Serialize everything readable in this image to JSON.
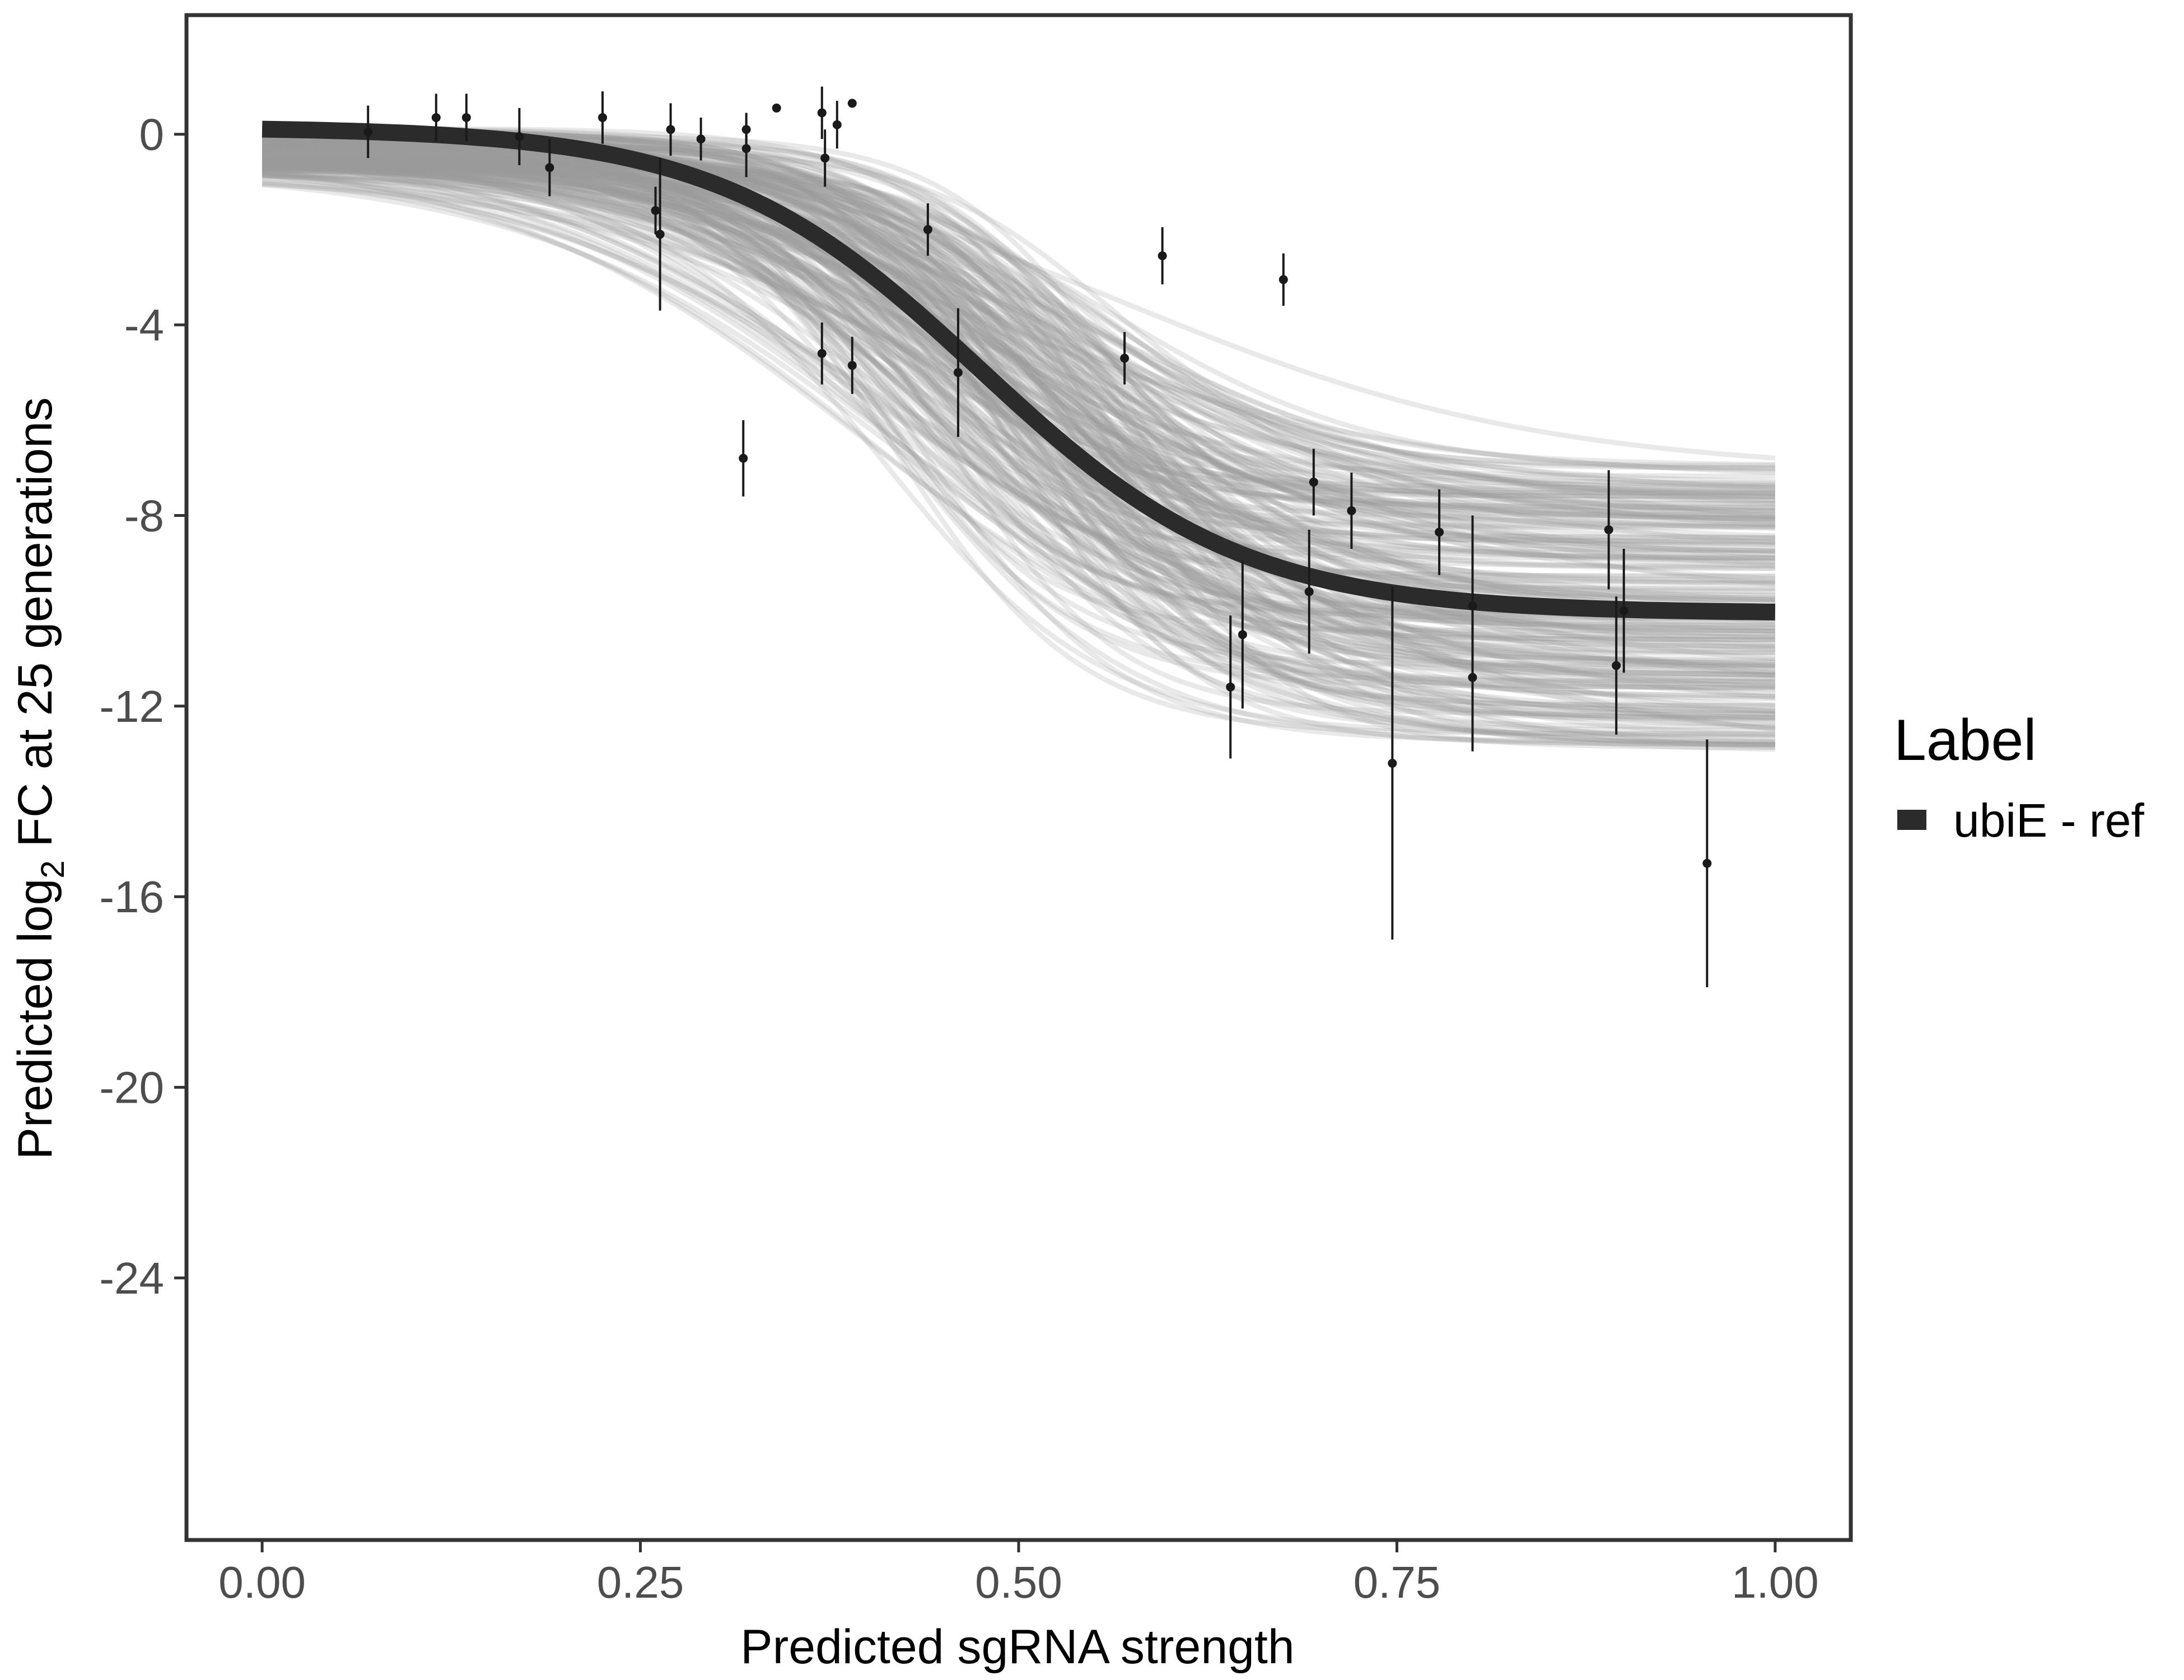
{
  "chart_data": {
    "type": "line",
    "title": "",
    "xlabel": "Predicted sgRNA strength",
    "ylabel_parts": [
      "Predicted  log",
      "2",
      " FC at 25 generations"
    ],
    "xlim": [
      -0.05,
      1.05
    ],
    "ylim": [
      -29.5,
      2.5
    ],
    "x_ticks": [
      0.0,
      0.25,
      0.5,
      0.75,
      1.0
    ],
    "x_tick_labels": [
      "0.00",
      "0.25",
      "0.50",
      "0.75",
      "1.00"
    ],
    "y_ticks": [
      0,
      -4,
      -8,
      -12,
      -16,
      -20,
      -24
    ],
    "y_tick_labels": [
      "0",
      "-4",
      "-8",
      "-12",
      "-16",
      "-20",
      "-24"
    ],
    "grid": false,
    "legend": {
      "title": "Label",
      "placement": "right",
      "entries": [
        {
          "name": "ubiE - ref",
          "color": "#2b2b2b"
        }
      ]
    },
    "fit_curve": {
      "name": "ubiE - ref",
      "color": "#2b2b2b",
      "model": "logistic",
      "upper": 0.15,
      "lower": -10.05,
      "midpoint": 0.475,
      "slope": 11.5
    },
    "posterior_band": {
      "color": "#9a9a9a",
      "min_upper": -0.8,
      "max_upper": 0.15,
      "min_lower": -13.0,
      "max_lower": -6.9,
      "min_midpoint": 0.39,
      "max_midpoint": 0.58,
      "min_slope": 7,
      "max_slope": 18,
      "n_curves": 220
    },
    "points": [
      {
        "x": 0.07,
        "y": 0.05,
        "err": 0.55
      },
      {
        "x": 0.115,
        "y": 0.35,
        "err": 0.5
      },
      {
        "x": 0.135,
        "y": 0.35,
        "err": 0.5
      },
      {
        "x": 0.17,
        "y": -0.05,
        "err": 0.6
      },
      {
        "x": 0.19,
        "y": -0.7,
        "err": 0.6
      },
      {
        "x": 0.225,
        "y": 0.35,
        "err": 0.55
      },
      {
        "x": 0.26,
        "y": -1.6,
        "err": 0.5
      },
      {
        "x": 0.263,
        "y": -2.1,
        "err": 1.6
      },
      {
        "x": 0.27,
        "y": 0.1,
        "err": 0.55
      },
      {
        "x": 0.29,
        "y": -0.1,
        "err": 0.45
      },
      {
        "x": 0.318,
        "y": -6.8,
        "err": 0.8
      },
      {
        "x": 0.32,
        "y": 0.1,
        "err": 0.35
      },
      {
        "x": 0.32,
        "y": -0.3,
        "err": 0.6
      },
      {
        "x": 0.34,
        "y": 0.55,
        "err": 0
      },
      {
        "x": 0.37,
        "y": 0.45,
        "err": 0.55
      },
      {
        "x": 0.37,
        "y": -4.6,
        "err": 0.65
      },
      {
        "x": 0.372,
        "y": -0.5,
        "err": 0.6
      },
      {
        "x": 0.38,
        "y": 0.2,
        "err": 0.5
      },
      {
        "x": 0.39,
        "y": 0.65,
        "err": 0
      },
      {
        "x": 0.39,
        "y": -4.85,
        "err": 0.6
      },
      {
        "x": 0.44,
        "y": -2.0,
        "err": 0.55
      },
      {
        "x": 0.46,
        "y": -5.0,
        "err": 1.35
      },
      {
        "x": 0.57,
        "y": -4.7,
        "err": 0.55
      },
      {
        "x": 0.595,
        "y": -2.55,
        "err": 0.6
      },
      {
        "x": 0.64,
        "y": -11.6,
        "err": 1.5
      },
      {
        "x": 0.648,
        "y": -10.5,
        "err": 1.55
      },
      {
        "x": 0.675,
        "y": -3.05,
        "err": 0.55
      },
      {
        "x": 0.692,
        "y": -9.6,
        "err": 1.3
      },
      {
        "x": 0.695,
        "y": -7.3,
        "err": 0.7
      },
      {
        "x": 0.72,
        "y": -7.9,
        "err": 0.8
      },
      {
        "x": 0.747,
        "y": -13.2,
        "err": 3.7
      },
      {
        "x": 0.778,
        "y": -8.35,
        "err": 0.9
      },
      {
        "x": 0.8,
        "y": -11.4,
        "err": 1.55
      },
      {
        "x": 0.8,
        "y": -9.9,
        "err": 1.9
      },
      {
        "x": 0.89,
        "y": -8.3,
        "err": 1.25
      },
      {
        "x": 0.895,
        "y": -11.15,
        "err": 1.45
      },
      {
        "x": 0.9,
        "y": -10.0,
        "err": 1.3
      },
      {
        "x": 0.955,
        "y": -15.3,
        "err": 2.6
      }
    ]
  }
}
